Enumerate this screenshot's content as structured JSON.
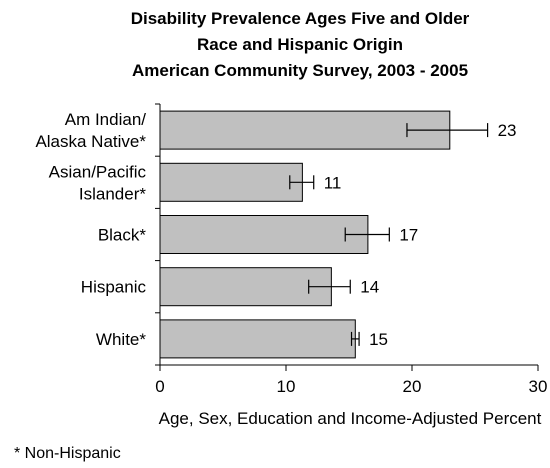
{
  "chart_data": {
    "type": "bar",
    "orientation": "horizontal",
    "title_lines": [
      "Disability Prevalence Ages Five and Older",
      "Race and Hispanic Origin",
      "American Community Survey, 2003 - 2005"
    ],
    "categories": [
      [
        "Am Indian/",
        "Alaska Native*"
      ],
      [
        "Asian/Pacific",
        "Islander*"
      ],
      [
        "Black*"
      ],
      [
        "Hispanic"
      ],
      [
        "White*"
      ]
    ],
    "values": [
      23,
      11.3,
      16.5,
      13.6,
      15.5
    ],
    "value_labels": [
      "23",
      "11",
      "17",
      "14",
      "15"
    ],
    "error_bars": [
      [
        19.6,
        26.0
      ],
      [
        10.3,
        12.2
      ],
      [
        14.7,
        18.2
      ],
      [
        11.8,
        15.1
      ],
      [
        15.2,
        15.8
      ]
    ],
    "xlim": [
      0,
      30
    ],
    "xticks": [
      "0",
      "10",
      "20",
      "30"
    ],
    "xlabel": "Age, Sex, Education and Income-Adjusted Percent",
    "footnote": "* Non-Hispanic",
    "colors": {
      "bar_fill": "#c0c0c0",
      "bar_stroke": "#000000",
      "error_bar": "#000000"
    },
    "grid": false
  }
}
